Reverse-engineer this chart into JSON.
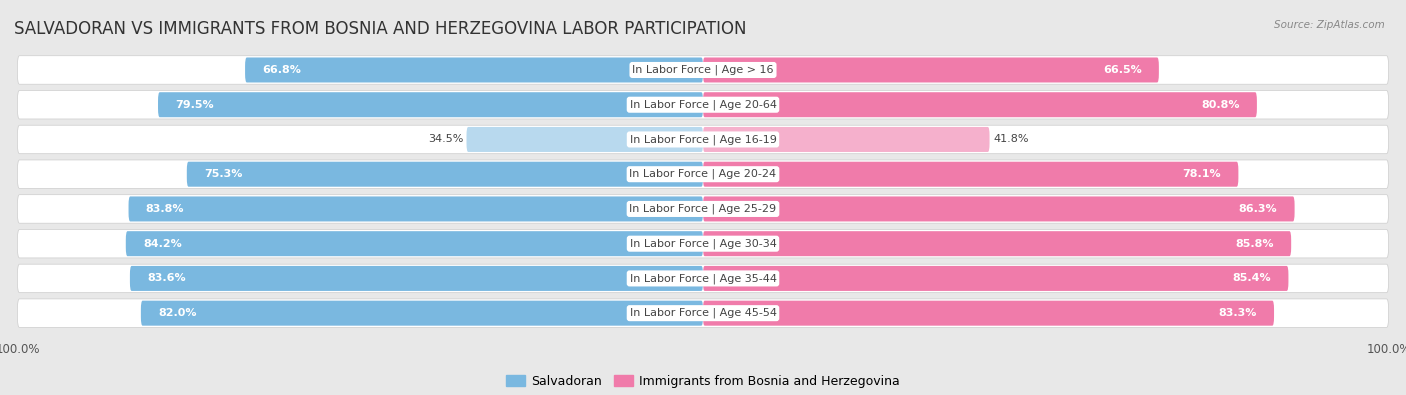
{
  "title": "SALVADORAN VS IMMIGRANTS FROM BOSNIA AND HERZEGOVINA LABOR PARTICIPATION",
  "source": "Source: ZipAtlas.com",
  "categories": [
    "In Labor Force | Age > 16",
    "In Labor Force | Age 20-64",
    "In Labor Force | Age 16-19",
    "In Labor Force | Age 20-24",
    "In Labor Force | Age 25-29",
    "In Labor Force | Age 30-34",
    "In Labor Force | Age 35-44",
    "In Labor Force | Age 45-54"
  ],
  "salvadoran_values": [
    66.8,
    79.5,
    34.5,
    75.3,
    83.8,
    84.2,
    83.6,
    82.0
  ],
  "bosnia_values": [
    66.5,
    80.8,
    41.8,
    78.1,
    86.3,
    85.8,
    85.4,
    83.3
  ],
  "salvadoran_color": "#7ab8e0",
  "salvadoran_color_light": "#b8d9ee",
  "bosnia_color": "#f07baa",
  "bosnia_color_light": "#f5b0cc",
  "bg_color": "#e8e8e8",
  "row_bg": "#ffffff",
  "max_value": 100.0,
  "bar_height": 0.72,
  "legend_salvadoran": "Salvadoran",
  "legend_bosnia": "Immigrants from Bosnia and Herzegovina",
  "title_fontsize": 12,
  "label_fontsize": 8,
  "tick_fontsize": 8.5,
  "legend_fontsize": 9
}
